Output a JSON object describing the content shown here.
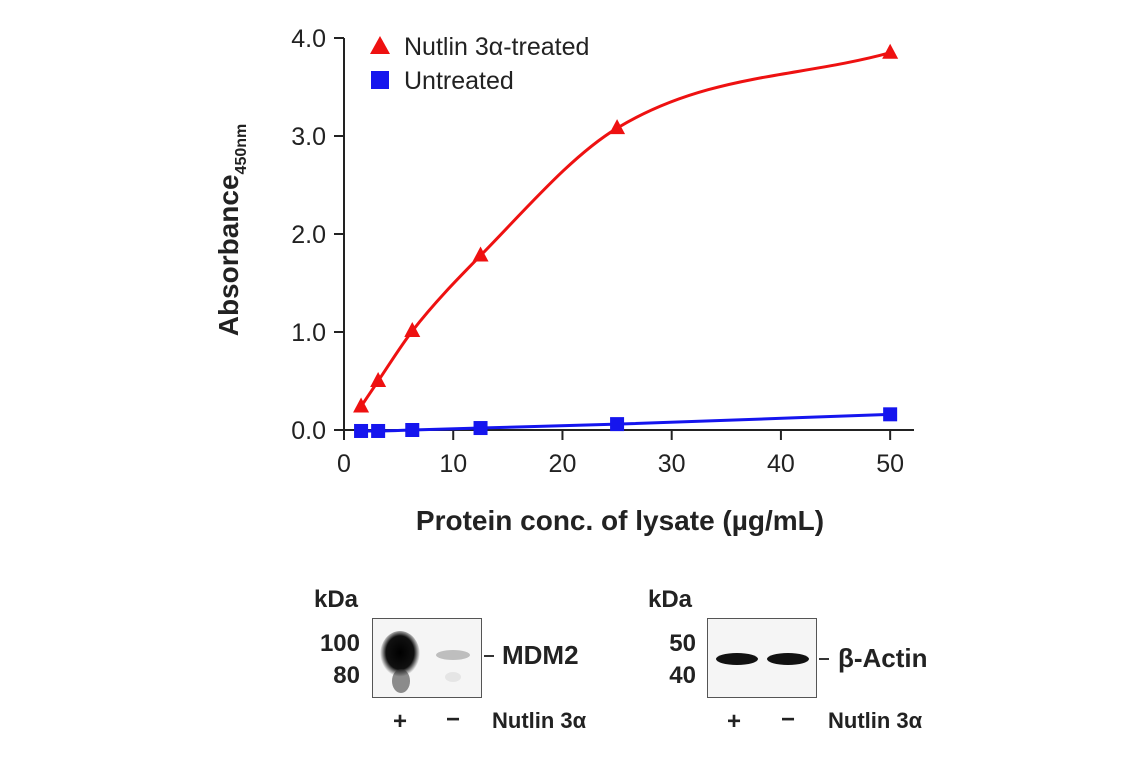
{
  "chart_data": {
    "type": "line",
    "title": "",
    "xlabel": "Protein conc. of lysate (µg/mL)",
    "ylabel_main": "Absorbance",
    "ylabel_sub": "450nm",
    "xlim": [
      0,
      52
    ],
    "ylim": [
      0,
      4.0
    ],
    "xticks": [
      0,
      10,
      20,
      30,
      40,
      50
    ],
    "yticks": [
      0,
      1,
      2,
      3,
      4
    ],
    "ytick_labels": [
      "0.0",
      "1.0",
      "2.0",
      "3.0",
      "4.0"
    ],
    "grid": false,
    "legend_position": "top-left",
    "series": [
      {
        "name": "Nutlin 3α-treated",
        "marker": "triangle",
        "color": "#ee1111",
        "x": [
          1.5625,
          3.125,
          6.25,
          12.5,
          25,
          50
        ],
        "y": [
          0.24,
          0.5,
          1.01,
          1.78,
          3.08,
          3.85
        ]
      },
      {
        "name": "Untreated",
        "marker": "square",
        "color": "#1515ee",
        "x": [
          1.5625,
          3.125,
          6.25,
          12.5,
          25,
          50
        ],
        "y": [
          -0.01,
          -0.01,
          0.0,
          0.02,
          0.06,
          0.16
        ]
      }
    ]
  },
  "blots": {
    "kda_label": "kDa",
    "left": {
      "markers": [
        "100",
        "80"
      ],
      "band_label": "MDM2",
      "treatment_label": "Nutlin 3α",
      "lanes": [
        "+",
        "−"
      ]
    },
    "right": {
      "markers": [
        "50",
        "40"
      ],
      "band_label": "β-Actin",
      "treatment_label": "Nutlin 3α",
      "lanes": [
        "+",
        "−"
      ]
    }
  }
}
